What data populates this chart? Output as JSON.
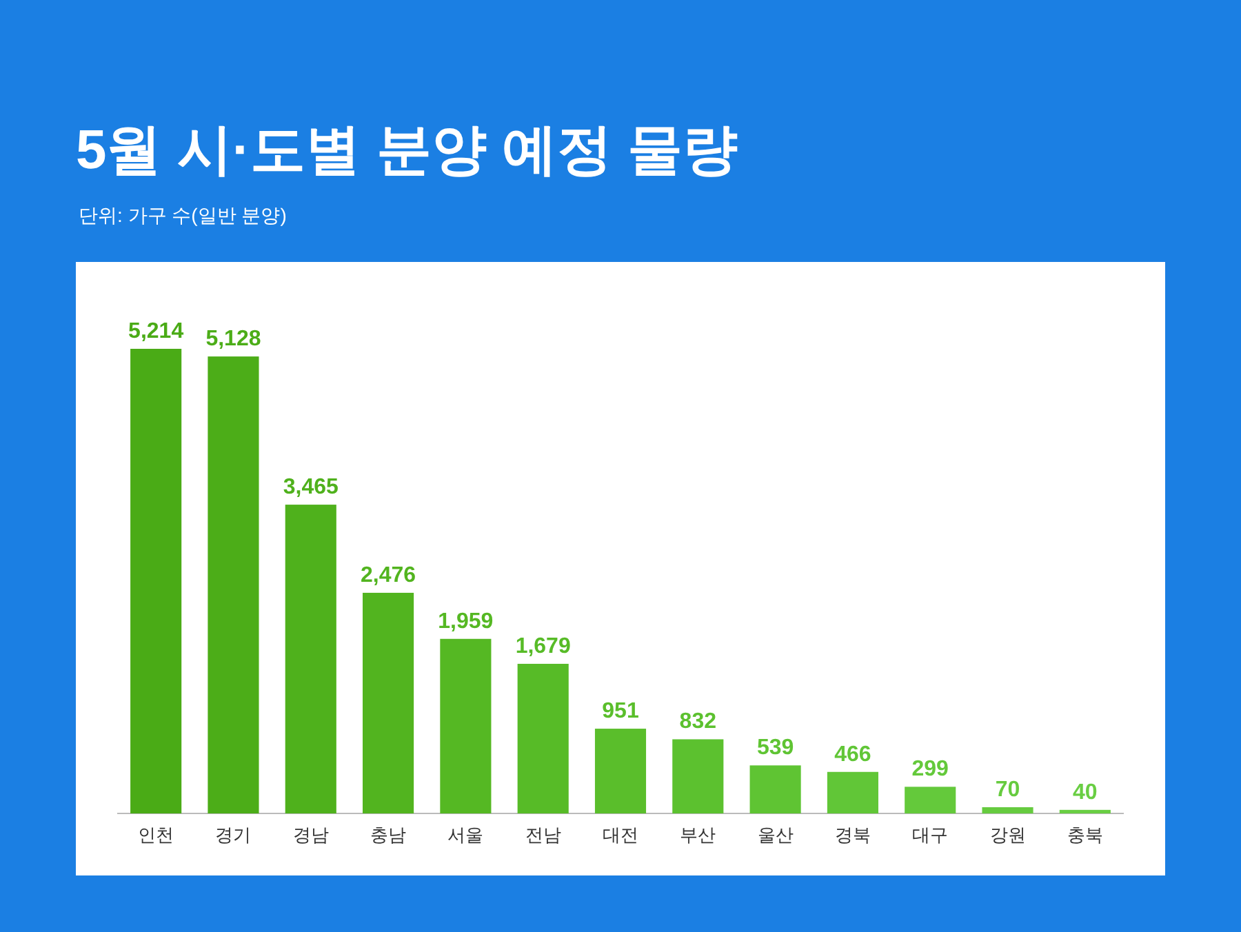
{
  "chart_data": {
    "type": "bar",
    "title": "5월 시·도별 분양 예정 물량",
    "subtitle": "단위: 가구 수(일반 분양)",
    "categories": [
      "인천",
      "경기",
      "경남",
      "충남",
      "서울",
      "전남",
      "대전",
      "부산",
      "울산",
      "경북",
      "대구",
      "강원",
      "충북"
    ],
    "values": [
      5214,
      5128,
      3465,
      2476,
      1959,
      1679,
      951,
      832,
      539,
      466,
      299,
      70,
      40
    ],
    "colors": [
      "#4aab16",
      "#4cad18",
      "#4fb11c",
      "#52b41f",
      "#55b823",
      "#57bb27",
      "#5abe2b",
      "#5cc12f",
      "#5fc433",
      "#61c637",
      "#64c93b",
      "#66cb3f",
      "#69ce43"
    ],
    "value_labels": [
      "5,214",
      "5,128",
      "3,465",
      "2,476",
      "1,959",
      "1,679",
      "951",
      "832",
      "539",
      "466",
      "299",
      "70",
      "40"
    ]
  }
}
